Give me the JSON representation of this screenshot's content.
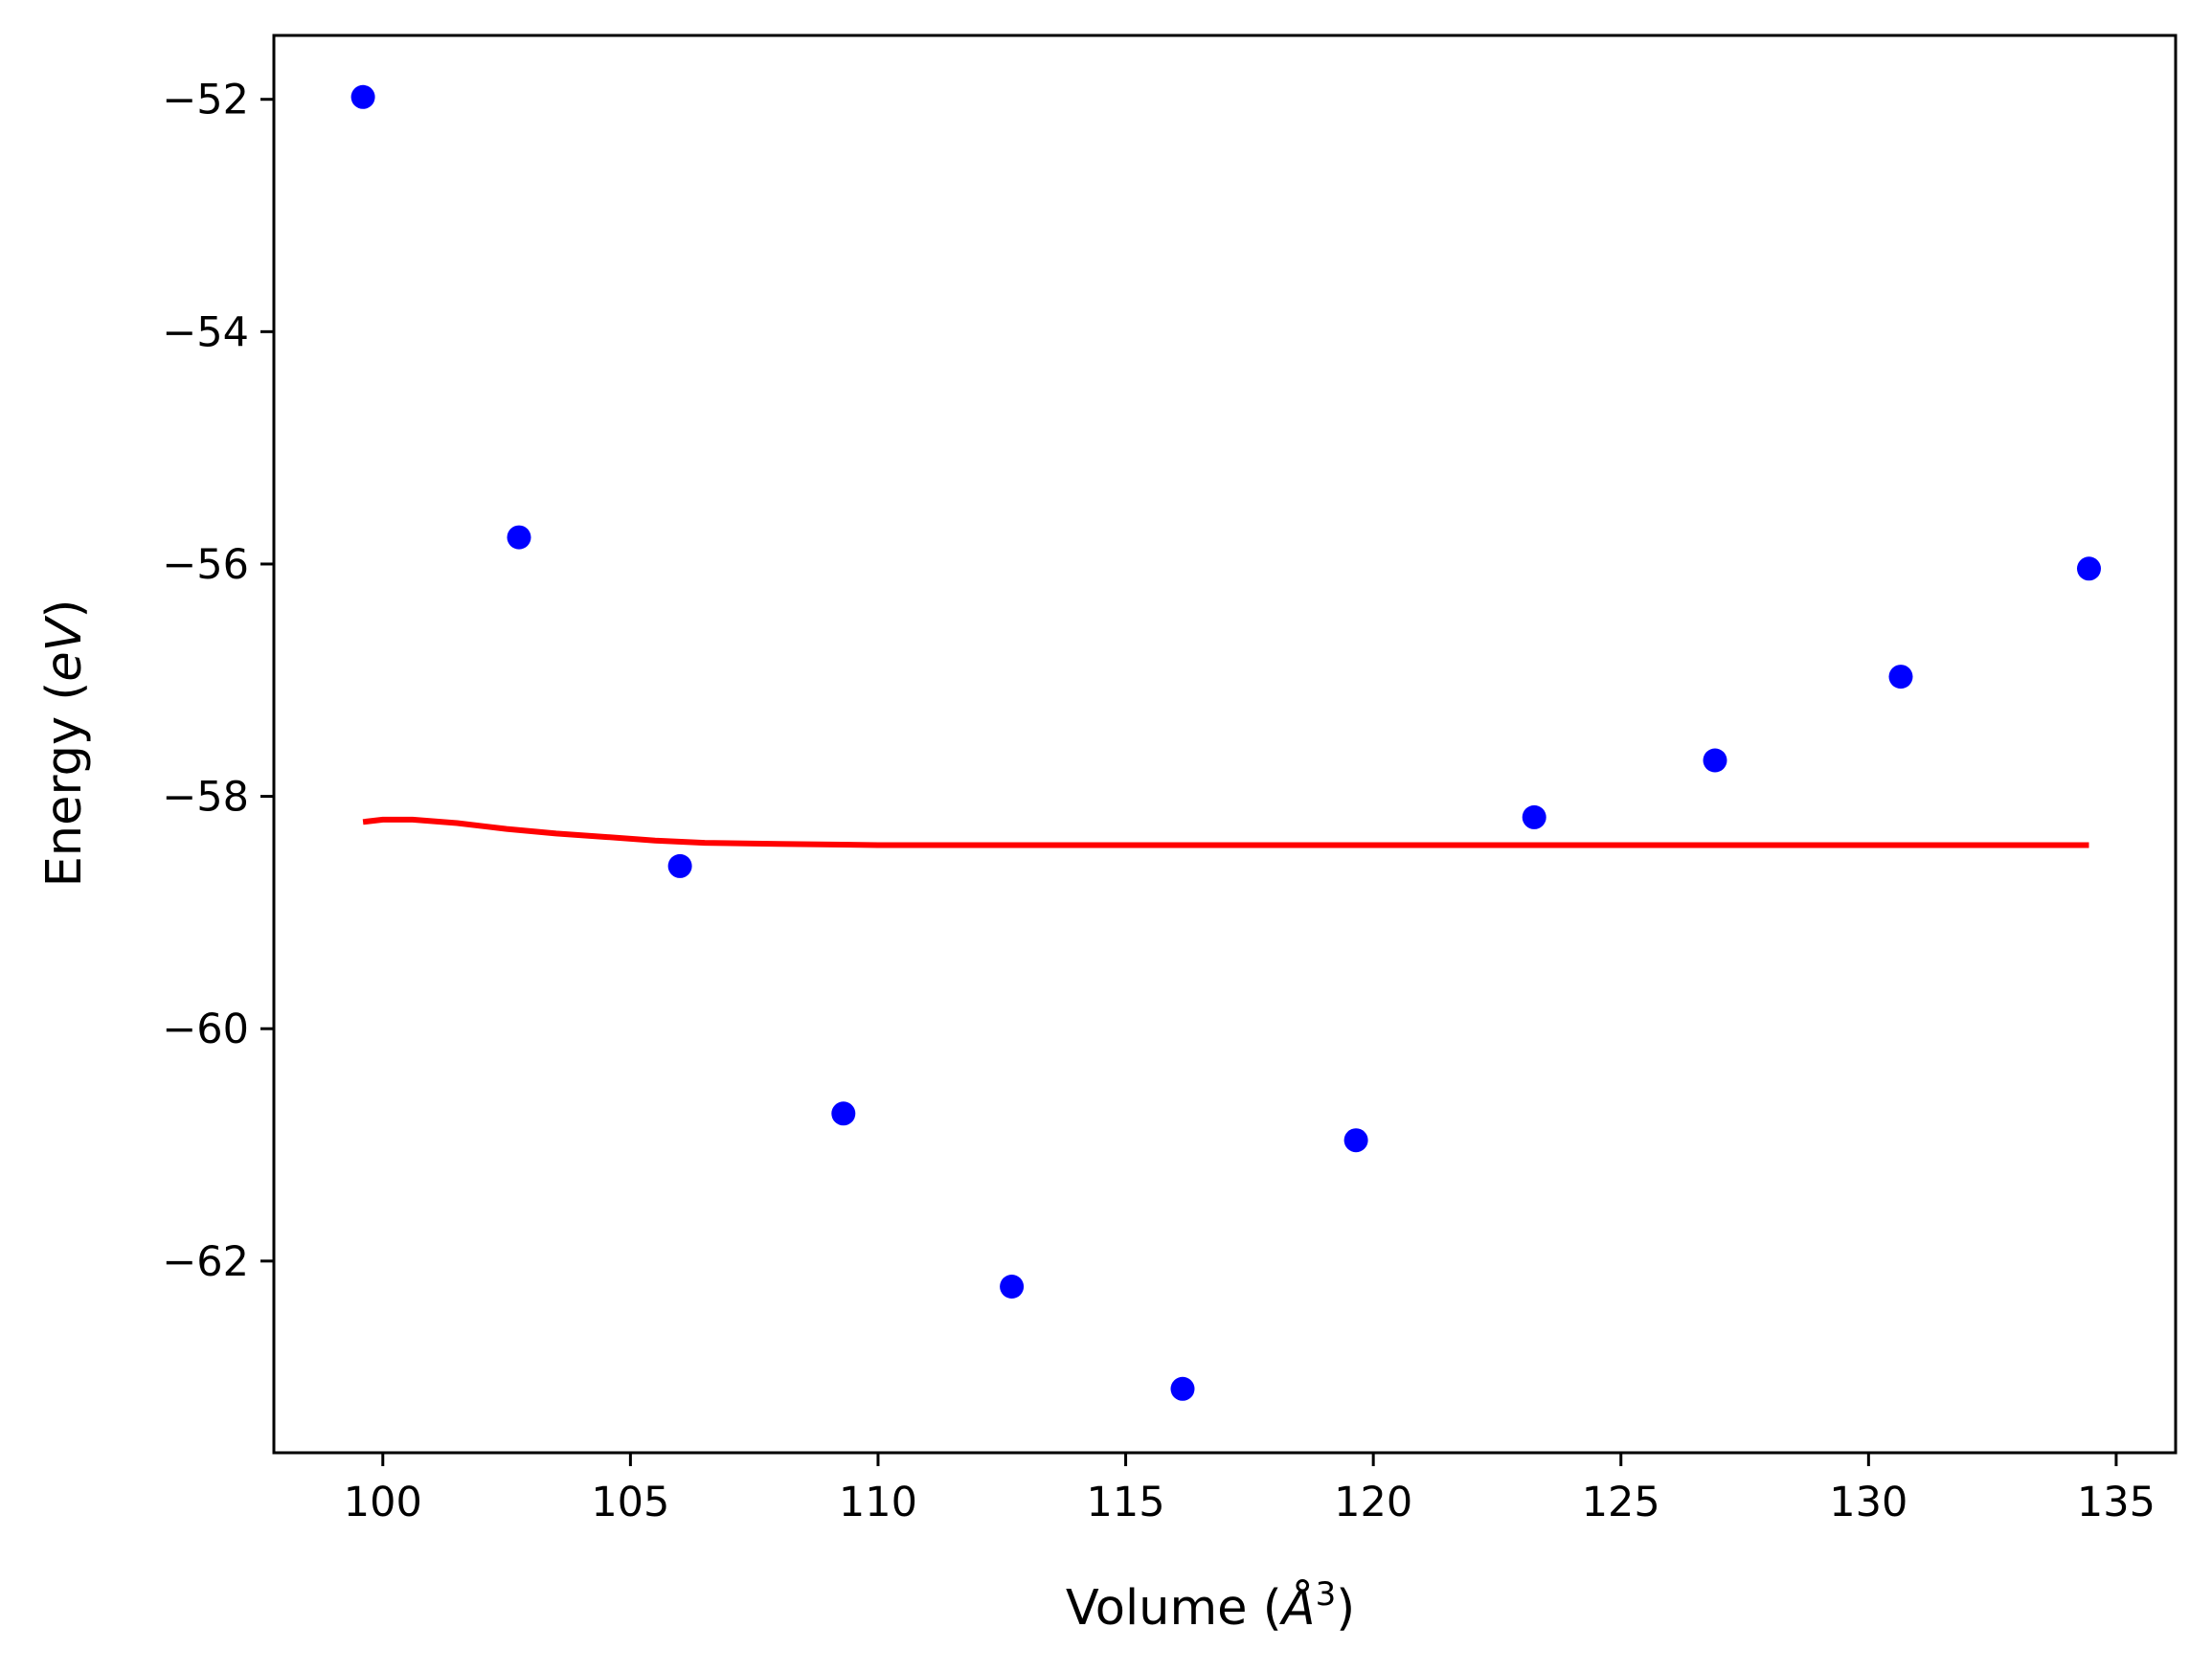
{
  "chart_data": {
    "type": "scatter",
    "title": "",
    "xlabel": "Volume (",
    "xlabel_unit": "Å",
    "xlabel_sup": "3",
    "xlabel_close": ")",
    "ylabel": "Energy (",
    "ylabel_unit": "eV",
    "ylabel_close": ")",
    "xlim": [
      97.8,
      136.2
    ],
    "ylim": [
      -63.65,
      -51.45
    ],
    "xticks": [
      100,
      105,
      110,
      115,
      120,
      125,
      130,
      135
    ],
    "xtick_labels": [
      "100",
      "105",
      "110",
      "115",
      "120",
      "125",
      "130",
      "135"
    ],
    "yticks": [
      -52,
      -54,
      -56,
      -58,
      -60,
      -62
    ],
    "ytick_labels": [
      "−52",
      "−54",
      "−56",
      "−58",
      "−60",
      "−62"
    ],
    "grid": false,
    "legend": "none",
    "series": [
      {
        "kind": "scatter",
        "color": "#0000ff",
        "x": [
          99.6,
          102.75,
          106.0,
          109.3,
          112.7,
          116.15,
          119.65,
          123.25,
          126.9,
          130.65,
          134.45
        ],
        "y": [
          -51.98,
          -55.77,
          -58.6,
          -60.73,
          -62.22,
          -63.1,
          -60.96,
          -58.18,
          -57.69,
          -56.97,
          -56.04
        ]
      },
      {
        "kind": "line",
        "color": "#ff0000",
        "x": [
          99.6,
          100.0,
          100.6,
          101.5,
          102.5,
          103.5,
          104.5,
          105.5,
          106.5,
          108.0,
          110.0,
          113.0,
          117.0,
          122.0,
          128.0,
          134.45
        ],
        "y": [
          -58.22,
          -58.2,
          -58.2,
          -58.23,
          -58.28,
          -58.32,
          -58.35,
          -58.38,
          -58.4,
          -58.41,
          -58.42,
          -58.42,
          -58.42,
          -58.42,
          -58.42,
          -58.42
        ]
      }
    ]
  }
}
